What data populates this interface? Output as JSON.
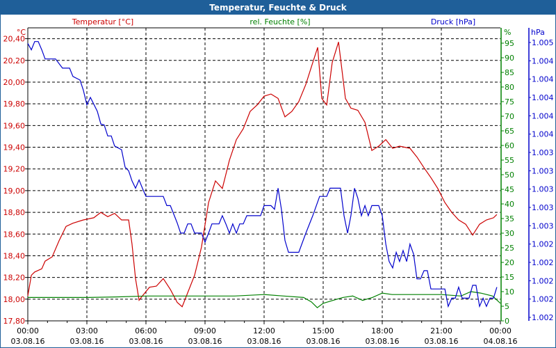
{
  "window": {
    "title": "Temperatur, Feuchte & Druck"
  },
  "colors": {
    "temperature": "#cc0000",
    "humidity": "#008000",
    "pressure": "#0000cc",
    "titlebar": "#1f5f99"
  },
  "chart_data": {
    "type": "line",
    "title": "Temperatur, Feuchte & Druck",
    "grid": true,
    "x_axis": {
      "unit": "hours since 03.08.16 00:00",
      "range": [
        0,
        24
      ],
      "ticks": [
        {
          "time": "00:00",
          "date": "03.08.16"
        },
        {
          "time": "03:00",
          "date": "03.08.16"
        },
        {
          "time": "06:00",
          "date": "03.08.16"
        },
        {
          "time": "09:00",
          "date": "03.08.16"
        },
        {
          "time": "12:00",
          "date": "03.08.16"
        },
        {
          "time": "15:00",
          "date": "03.08.16"
        },
        {
          "time": "18:00",
          "date": "03.08.16"
        },
        {
          "time": "21:00",
          "date": "03.08.16"
        },
        {
          "time": "00:00",
          "date": "04.08.16"
        }
      ]
    },
    "axes": {
      "temperature": {
        "label": "Temperatur [°C]",
        "unit": "°C",
        "range": [
          17.8,
          20.5
        ],
        "ticks": [
          "17,80",
          "18,00",
          "18,20",
          "18,40",
          "18,60",
          "18,80",
          "19,00",
          "19,20",
          "19,40",
          "19,60",
          "19,80",
          "20,00",
          "20,20",
          "20,40"
        ]
      },
      "humidity": {
        "label": "rel. Feuchte [%]",
        "unit": "%",
        "range": [
          0,
          95
        ],
        "ticks": [
          "0",
          "5",
          "10",
          "15",
          "20",
          "25",
          "30",
          "35",
          "40",
          "45",
          "50",
          "55",
          "60",
          "65",
          "70",
          "75",
          "80",
          "85",
          "90",
          "95"
        ]
      },
      "pressure": {
        "label": "Druck [hPa]",
        "unit": "hPa",
        "range": [
          1001.6,
          1004.6
        ],
        "ticks": [
          "1.002",
          "1.002",
          "1.002",
          "1.002",
          "1.002",
          "1.003",
          "1.003",
          "1.003",
          "1.003",
          "1.003",
          "1.004",
          "1.004",
          "1.004",
          "1.004",
          "1.004",
          "1.005"
        ]
      }
    },
    "series": [
      {
        "name": "Temperatur [°C]",
        "axis": "temperature",
        "points": [
          [
            0,
            18.03
          ],
          [
            0.18,
            18.22
          ],
          [
            0.35,
            18.25
          ],
          [
            0.71,
            18.28
          ],
          [
            0.88,
            18.35
          ],
          [
            1.24,
            18.39
          ],
          [
            1.59,
            18.54
          ],
          [
            1.94,
            18.67
          ],
          [
            2.29,
            18.7
          ],
          [
            2.82,
            18.73
          ],
          [
            3.35,
            18.75
          ],
          [
            3.71,
            18.8
          ],
          [
            4.06,
            18.76
          ],
          [
            4.41,
            18.79
          ],
          [
            4.76,
            18.73
          ],
          [
            5.12,
            18.73
          ],
          [
            5.29,
            18.51
          ],
          [
            5.47,
            18.19
          ],
          [
            5.65,
            17.99
          ],
          [
            5.82,
            18.03
          ],
          [
            6.18,
            18.11
          ],
          [
            6.53,
            18.12
          ],
          [
            6.88,
            18.19
          ],
          [
            7.24,
            18.09
          ],
          [
            7.59,
            17.97
          ],
          [
            7.84,
            17.93
          ],
          [
            8.12,
            18.06
          ],
          [
            8.47,
            18.22
          ],
          [
            8.82,
            18.48
          ],
          [
            9.18,
            18.89
          ],
          [
            9.53,
            19.09
          ],
          [
            9.88,
            19.02
          ],
          [
            10.24,
            19.28
          ],
          [
            10.59,
            19.47
          ],
          [
            10.94,
            19.57
          ],
          [
            11.29,
            19.73
          ],
          [
            11.65,
            19.79
          ],
          [
            12,
            19.87
          ],
          [
            12.35,
            19.89
          ],
          [
            12.71,
            19.85
          ],
          [
            13.06,
            19.68
          ],
          [
            13.41,
            19.73
          ],
          [
            13.76,
            19.82
          ],
          [
            14.12,
            19.98
          ],
          [
            14.47,
            20.18
          ],
          [
            14.72,
            20.32
          ],
          [
            14.93,
            19.85
          ],
          [
            15.18,
            19.79
          ],
          [
            15.46,
            20.18
          ],
          [
            15.78,
            20.37
          ],
          [
            16.13,
            19.85
          ],
          [
            16.41,
            19.76
          ],
          [
            16.76,
            19.74
          ],
          [
            17.12,
            19.63
          ],
          [
            17.47,
            19.37
          ],
          [
            17.82,
            19.41
          ],
          [
            18.18,
            19.47
          ],
          [
            18.53,
            19.39
          ],
          [
            18.88,
            19.41
          ],
          [
            19.41,
            19.39
          ],
          [
            19.76,
            19.31
          ],
          [
            20.12,
            19.21
          ],
          [
            20.47,
            19.12
          ],
          [
            20.82,
            19.02
          ],
          [
            21.18,
            18.89
          ],
          [
            21.53,
            18.8
          ],
          [
            21.88,
            18.73
          ],
          [
            22.24,
            18.69
          ],
          [
            22.59,
            18.59
          ],
          [
            22.94,
            18.69
          ],
          [
            23.29,
            18.73
          ],
          [
            23.65,
            18.75
          ],
          [
            23.82,
            18.78
          ]
        ]
      },
      {
        "name": "rel. Feuchte [%]",
        "axis": "humidity",
        "points": [
          [
            0,
            8
          ],
          [
            1.5,
            8
          ],
          [
            3,
            8
          ],
          [
            4.5,
            8.2
          ],
          [
            6,
            8.5
          ],
          [
            7.5,
            8.5
          ],
          [
            9,
            8.5
          ],
          [
            10.5,
            8.5
          ],
          [
            12,
            9
          ],
          [
            13,
            8.5
          ],
          [
            14,
            8
          ],
          [
            14.4,
            6.5
          ],
          [
            14.7,
            4.5
          ],
          [
            15,
            6
          ],
          [
            15.5,
            7
          ],
          [
            16,
            8
          ],
          [
            16.5,
            8.5
          ],
          [
            17,
            7
          ],
          [
            17.5,
            8
          ],
          [
            18,
            9.5
          ],
          [
            18.5,
            9
          ],
          [
            19.5,
            9
          ],
          [
            21,
            9
          ],
          [
            22,
            8.5
          ],
          [
            22.5,
            10
          ],
          [
            23,
            9.5
          ],
          [
            23.6,
            8.5
          ],
          [
            24,
            6
          ]
        ]
      },
      {
        "name": "Druck [hPa]",
        "axis": "pressure",
        "points": [
          [
            0,
            1004.59
          ],
          [
            0.18,
            1004.52
          ],
          [
            0.35,
            1004.61
          ],
          [
            0.53,
            1004.61
          ],
          [
            0.71,
            1004.52
          ],
          [
            0.88,
            1004.42
          ],
          [
            1.41,
            1004.42
          ],
          [
            1.76,
            1004.32
          ],
          [
            2.12,
            1004.32
          ],
          [
            2.29,
            1004.23
          ],
          [
            2.65,
            1004.19
          ],
          [
            2.82,
            1004.08
          ],
          [
            3,
            1003.92
          ],
          [
            3.18,
            1004.0
          ],
          [
            3.53,
            1003.85
          ],
          [
            3.71,
            1003.71
          ],
          [
            3.88,
            1003.7
          ],
          [
            4.06,
            1003.58
          ],
          [
            4.24,
            1003.58
          ],
          [
            4.41,
            1003.47
          ],
          [
            4.76,
            1003.43
          ],
          [
            4.94,
            1003.24
          ],
          [
            5.12,
            1003.2
          ],
          [
            5.29,
            1003.09
          ],
          [
            5.47,
            1003.01
          ],
          [
            5.65,
            1003.1
          ],
          [
            5.82,
            1003.01
          ],
          [
            6,
            1002.92
          ],
          [
            6.88,
            1002.92
          ],
          [
            7.06,
            1002.82
          ],
          [
            7.24,
            1002.82
          ],
          [
            7.59,
            1002.63
          ],
          [
            7.76,
            1002.52
          ],
          [
            7.94,
            1002.52
          ],
          [
            8.12,
            1002.62
          ],
          [
            8.29,
            1002.62
          ],
          [
            8.47,
            1002.52
          ],
          [
            8.82,
            1002.52
          ],
          [
            9,
            1002.42
          ],
          [
            9.18,
            1002.52
          ],
          [
            9.35,
            1002.62
          ],
          [
            9.71,
            1002.62
          ],
          [
            9.88,
            1002.71
          ],
          [
            10.06,
            1002.62
          ],
          [
            10.24,
            1002.52
          ],
          [
            10.41,
            1002.62
          ],
          [
            10.59,
            1002.52
          ],
          [
            10.76,
            1002.62
          ],
          [
            10.94,
            1002.62
          ],
          [
            11.12,
            1002.71
          ],
          [
            11.82,
            1002.71
          ],
          [
            12,
            1002.82
          ],
          [
            12.35,
            1002.82
          ],
          [
            12.53,
            1002.78
          ],
          [
            12.71,
            1003.01
          ],
          [
            12.88,
            1002.78
          ],
          [
            13.06,
            1002.44
          ],
          [
            13.24,
            1002.31
          ],
          [
            13.76,
            1002.31
          ],
          [
            14.12,
            1002.52
          ],
          [
            14.47,
            1002.71
          ],
          [
            14.82,
            1002.92
          ],
          [
            15.18,
            1002.92
          ],
          [
            15.35,
            1003.01
          ],
          [
            15.88,
            1003.01
          ],
          [
            16.06,
            1002.71
          ],
          [
            16.24,
            1002.52
          ],
          [
            16.41,
            1002.71
          ],
          [
            16.59,
            1003.01
          ],
          [
            16.76,
            1002.9
          ],
          [
            16.94,
            1002.71
          ],
          [
            17.12,
            1002.82
          ],
          [
            17.29,
            1002.71
          ],
          [
            17.47,
            1002.82
          ],
          [
            17.82,
            1002.82
          ],
          [
            18,
            1002.71
          ],
          [
            18.18,
            1002.4
          ],
          [
            18.35,
            1002.21
          ],
          [
            18.53,
            1002.14
          ],
          [
            18.71,
            1002.31
          ],
          [
            18.88,
            1002.21
          ],
          [
            19.06,
            1002.33
          ],
          [
            19.24,
            1002.21
          ],
          [
            19.41,
            1002.4
          ],
          [
            19.59,
            1002.29
          ],
          [
            19.76,
            1002.02
          ],
          [
            19.94,
            1002.02
          ],
          [
            20.12,
            1002.11
          ],
          [
            20.29,
            1002.11
          ],
          [
            20.47,
            1001.91
          ],
          [
            21.18,
            1001.91
          ],
          [
            21.35,
            1001.72
          ],
          [
            21.53,
            1001.81
          ],
          [
            21.71,
            1001.81
          ],
          [
            21.88,
            1001.93
          ],
          [
            22.06,
            1001.81
          ],
          [
            22.41,
            1001.81
          ],
          [
            22.59,
            1001.95
          ],
          [
            22.76,
            1001.95
          ],
          [
            22.94,
            1001.72
          ],
          [
            23.12,
            1001.81
          ],
          [
            23.29,
            1001.72
          ],
          [
            23.47,
            1001.81
          ],
          [
            23.65,
            1001.81
          ],
          [
            23.82,
            1001.93
          ]
        ]
      }
    ]
  }
}
